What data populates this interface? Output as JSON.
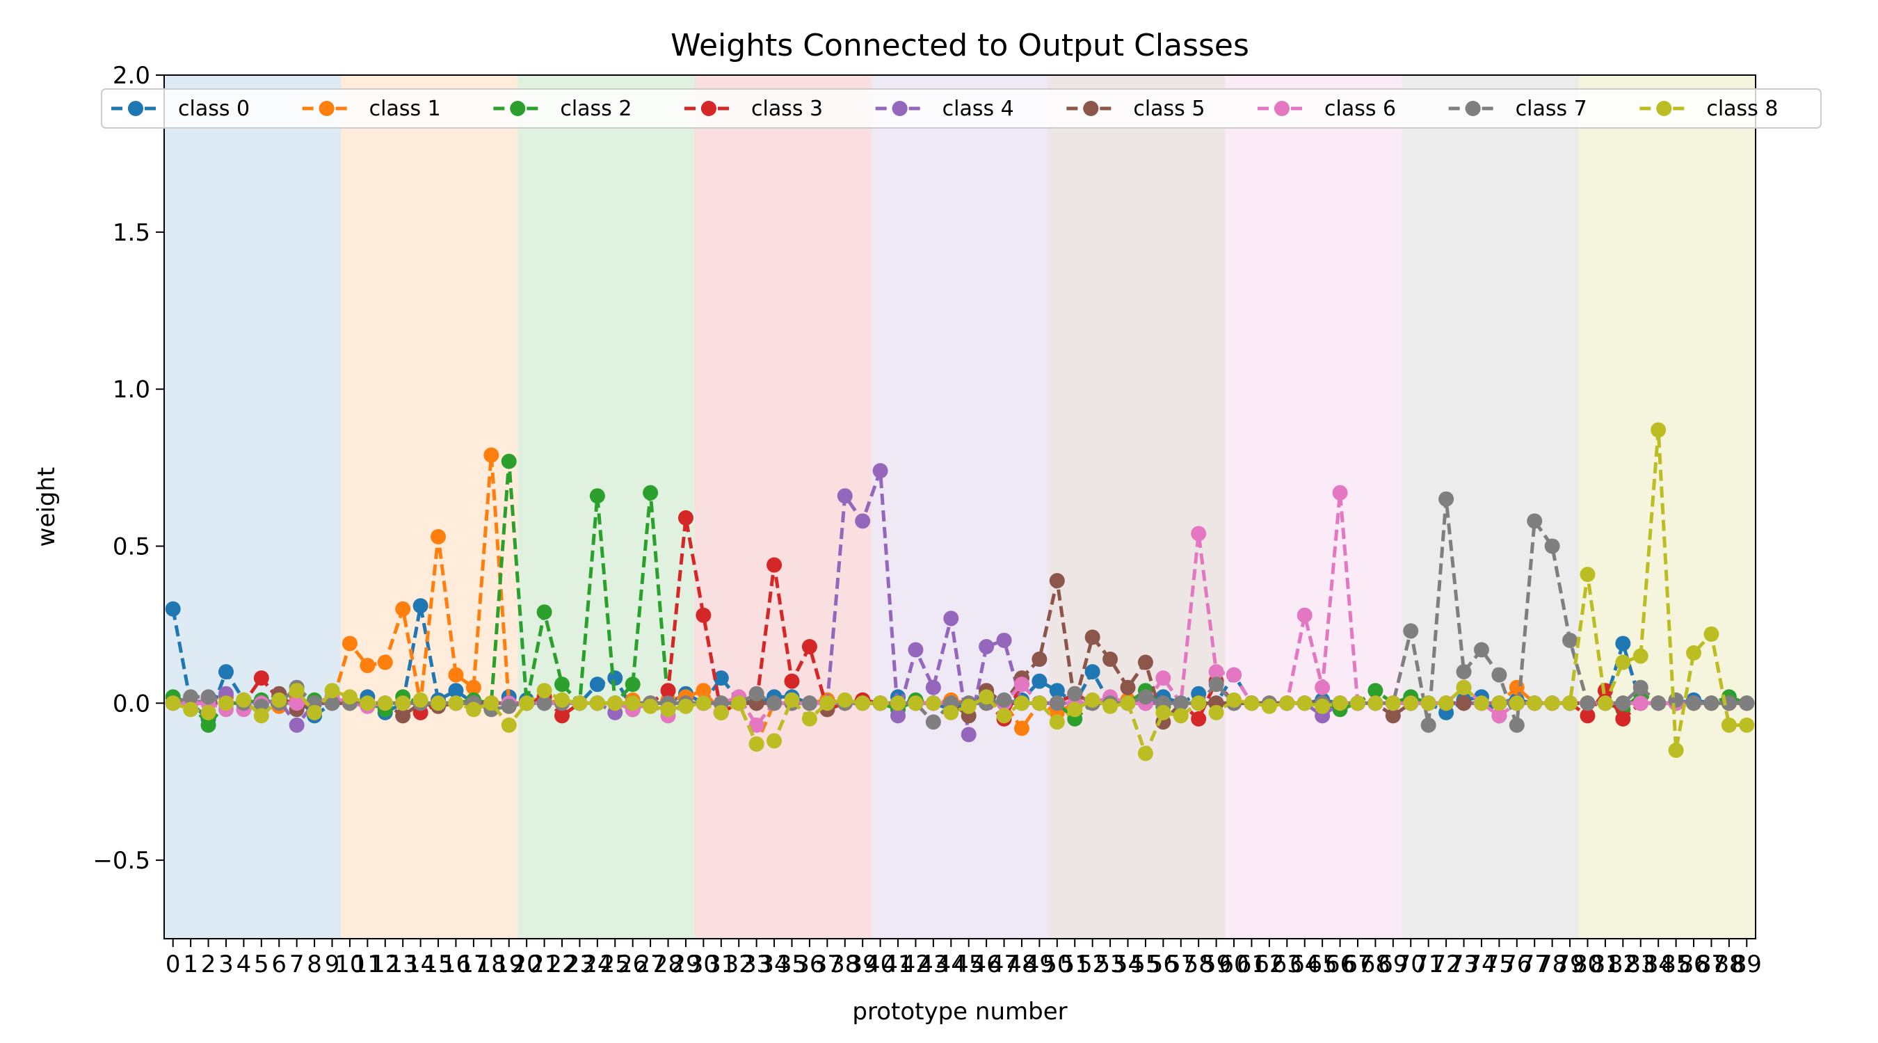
{
  "chart_data": {
    "type": "line",
    "title": "Weights Connected to Output Classes",
    "xlabel": "prototype number",
    "ylabel": "weight",
    "xlim": [
      -0.5,
      89.5
    ],
    "ylim": [
      -0.75,
      2.0
    ],
    "yticks": [
      -0.5,
      0.0,
      0.5,
      1.0,
      1.5,
      2.0
    ],
    "ytick_labels": [
      "−0.5",
      "0.0",
      "0.5",
      "1.0",
      "1.5",
      "2.0"
    ],
    "xtick_step": 1,
    "line_style": "dashed",
    "marker": "circle",
    "legend_position": "top",
    "band_size": 10,
    "band_opacity": 0.15,
    "series": [
      {
        "name": "class 0",
        "color": "#1f77b4",
        "values": [
          0.3,
          0.0,
          -0.05,
          0.1,
          0.01,
          0.0,
          0.01,
          0.02,
          -0.04,
          0.0,
          0.01,
          0.02,
          -0.03,
          0.0,
          0.31,
          0.01,
          0.04,
          0.0,
          0.0,
          0.02,
          0.01,
          0.0,
          0.0,
          0.0,
          0.06,
          0.08,
          -0.02,
          0.0,
          0.0,
          0.03,
          0.0,
          0.08,
          0.01,
          0.0,
          0.02,
          0.02,
          0.0,
          0.01,
          0.0,
          0.01,
          0.0,
          0.02,
          0.0,
          0.0,
          -0.02,
          0.0,
          0.03,
          0.0,
          0.01,
          0.07,
          0.04,
          0.0,
          0.1,
          0.0,
          0.01,
          0.0,
          0.02,
          0.0,
          0.03,
          0.0,
          0.09,
          0.0,
          0.0,
          0.0,
          0.0,
          0.01,
          0.0,
          0.0,
          0.0,
          0.0,
          0.0,
          0.0,
          -0.03,
          0.01,
          0.02,
          -0.04,
          0.01,
          0.0,
          0.0,
          0.0,
          0.0,
          0.0,
          0.19,
          0.0,
          0.0,
          0.0,
          0.01,
          0.0,
          0.0,
          0.0
        ]
      },
      {
        "name": "class 1",
        "color": "#ff7f0e",
        "values": [
          0.0,
          0.0,
          0.01,
          0.02,
          0.01,
          0.0,
          -0.01,
          0.01,
          0.0,
          0.0,
          0.19,
          0.12,
          0.13,
          0.3,
          0.0,
          0.53,
          0.09,
          0.05,
          0.79,
          0.0,
          0.0,
          0.0,
          0.01,
          0.0,
          0.0,
          0.0,
          0.01,
          0.0,
          0.01,
          0.02,
          0.04,
          -0.03,
          0.0,
          -0.13,
          0.0,
          0.0,
          0.0,
          0.01,
          0.0,
          0.0,
          0.0,
          0.0,
          0.0,
          0.0,
          0.01,
          0.0,
          0.0,
          0.0,
          -0.08,
          0.0,
          -0.03,
          0.0,
          0.0,
          0.0,
          0.01,
          0.0,
          0.0,
          0.0,
          0.0,
          0.0,
          0.0,
          0.0,
          0.0,
          0.0,
          0.0,
          0.0,
          0.0,
          0.0,
          0.0,
          0.0,
          0.0,
          0.0,
          0.0,
          0.0,
          0.0,
          0.0,
          0.05,
          0.0,
          0.0,
          0.0,
          0.0,
          0.0,
          0.0,
          0.0,
          0.0,
          0.0,
          0.0,
          0.0,
          0.0,
          0.0
        ]
      },
      {
        "name": "class 2",
        "color": "#2ca02c",
        "values": [
          0.02,
          0.0,
          -0.07,
          0.0,
          0.0,
          0.01,
          0.0,
          0.0,
          0.01,
          0.0,
          0.0,
          0.0,
          -0.02,
          0.02,
          0.0,
          0.0,
          0.0,
          0.01,
          0.0,
          0.77,
          0.0,
          0.29,
          0.06,
          0.0,
          0.66,
          0.0,
          0.06,
          0.67,
          0.0,
          0.0,
          0.0,
          0.0,
          0.0,
          0.0,
          0.0,
          0.0,
          0.0,
          0.0,
          0.0,
          0.0,
          0.0,
          -0.02,
          0.01,
          0.0,
          0.0,
          0.0,
          0.0,
          0.0,
          0.0,
          0.0,
          0.0,
          -0.05,
          0.0,
          0.0,
          0.0,
          0.04,
          -0.01,
          0.0,
          0.0,
          0.0,
          0.0,
          0.0,
          0.0,
          0.0,
          0.0,
          0.0,
          -0.02,
          0.0,
          0.04,
          0.0,
          0.02,
          0.0,
          0.0,
          0.0,
          0.0,
          0.0,
          0.0,
          0.0,
          0.0,
          0.0,
          0.0,
          0.0,
          -0.02,
          0.03,
          0.0,
          0.0,
          0.0,
          0.0,
          0.02,
          0.0
        ]
      },
      {
        "name": "class 3",
        "color": "#d62728",
        "values": [
          0.0,
          0.0,
          0.0,
          0.0,
          0.0,
          0.08,
          0.01,
          0.0,
          0.0,
          0.0,
          0.0,
          0.0,
          0.0,
          0.0,
          -0.03,
          0.0,
          0.0,
          0.0,
          0.0,
          0.0,
          0.0,
          0.02,
          -0.04,
          0.0,
          0.0,
          0.0,
          0.0,
          0.0,
          0.04,
          0.59,
          0.28,
          -0.03,
          0.0,
          0.0,
          0.44,
          0.07,
          0.18,
          -0.02,
          0.0,
          0.01,
          0.0,
          0.0,
          0.0,
          0.0,
          0.0,
          0.0,
          0.0,
          -0.05,
          0.06,
          0.0,
          0.0,
          0.03,
          0.0,
          0.0,
          0.0,
          0.0,
          0.0,
          0.0,
          -0.05,
          0.07,
          0.0,
          0.0,
          0.0,
          0.0,
          0.0,
          0.0,
          0.0,
          0.0,
          0.0,
          0.0,
          0.0,
          0.0,
          0.0,
          0.0,
          0.0,
          0.0,
          0.0,
          0.0,
          0.0,
          0.0,
          -0.04,
          0.04,
          -0.05,
          0.0,
          0.0,
          0.0,
          0.0,
          0.0,
          0.0,
          0.0
        ]
      },
      {
        "name": "class 4",
        "color": "#9467bd",
        "values": [
          0.0,
          0.0,
          0.01,
          0.03,
          0.0,
          0.0,
          0.01,
          -0.07,
          0.0,
          0.0,
          0.0,
          0.0,
          0.0,
          0.0,
          0.0,
          0.0,
          0.0,
          0.0,
          0.0,
          0.0,
          0.0,
          0.0,
          0.0,
          0.0,
          0.0,
          -0.03,
          0.0,
          0.0,
          0.0,
          0.0,
          0.0,
          0.0,
          0.0,
          0.0,
          0.0,
          0.0,
          0.0,
          0.0,
          0.66,
          0.58,
          0.74,
          -0.04,
          0.17,
          0.05,
          0.27,
          -0.1,
          0.18,
          0.2,
          0.0,
          0.0,
          0.0,
          0.0,
          0.0,
          0.0,
          0.0,
          0.0,
          0.0,
          0.0,
          0.0,
          0.0,
          0.0,
          0.0,
          0.0,
          0.0,
          0.0,
          -0.04,
          0.0,
          0.0,
          0.0,
          0.0,
          0.0,
          0.0,
          0.0,
          0.0,
          0.0,
          0.0,
          0.0,
          0.0,
          0.0,
          0.0,
          0.0,
          0.0,
          0.0,
          0.0,
          0.0,
          0.0,
          0.0,
          0.0,
          0.0,
          0.0
        ]
      },
      {
        "name": "class 5",
        "color": "#8c564b",
        "values": [
          0.0,
          0.0,
          0.0,
          0.0,
          0.0,
          0.0,
          0.03,
          -0.02,
          0.0,
          0.0,
          0.0,
          0.0,
          0.0,
          -0.04,
          0.0,
          -0.01,
          0.0,
          0.0,
          0.0,
          0.0,
          0.0,
          0.0,
          0.0,
          0.0,
          0.0,
          0.0,
          0.0,
          0.0,
          0.0,
          0.0,
          0.0,
          0.0,
          0.0,
          0.0,
          0.0,
          0.0,
          0.0,
          -0.02,
          0.0,
          0.0,
          0.0,
          0.0,
          0.0,
          0.0,
          0.0,
          -0.04,
          0.04,
          0.0,
          0.08,
          0.14,
          0.39,
          0.0,
          0.21,
          0.14,
          0.05,
          0.13,
          -0.06,
          0.0,
          0.0,
          0.0,
          0.0,
          0.0,
          0.0,
          0.0,
          0.0,
          0.0,
          0.0,
          0.0,
          0.0,
          -0.04,
          0.0,
          0.0,
          0.0,
          0.0,
          0.0,
          0.0,
          0.0,
          0.0,
          0.0,
          0.0,
          0.0,
          0.0,
          0.0,
          0.0,
          0.0,
          0.0,
          0.0,
          0.0,
          0.0,
          0.0
        ]
      },
      {
        "name": "class 6",
        "color": "#e377c2",
        "values": [
          0.0,
          0.0,
          0.0,
          -0.02,
          -0.02,
          0.0,
          0.0,
          0.0,
          0.0,
          0.02,
          0.0,
          -0.01,
          0.0,
          0.0,
          0.0,
          0.0,
          0.0,
          0.0,
          0.0,
          0.0,
          0.0,
          0.0,
          0.0,
          0.0,
          0.0,
          0.0,
          -0.02,
          0.0,
          -0.04,
          0.0,
          0.0,
          0.0,
          0.02,
          -0.07,
          0.0,
          0.0,
          0.0,
          0.0,
          0.0,
          0.0,
          0.0,
          0.0,
          0.0,
          0.0,
          0.0,
          0.0,
          0.0,
          0.0,
          0.06,
          0.0,
          0.0,
          0.0,
          0.0,
          0.02,
          0.0,
          0.0,
          0.08,
          0.0,
          0.54,
          0.1,
          0.09,
          0.0,
          0.0,
          0.0,
          0.28,
          0.05,
          0.67,
          0.0,
          0.0,
          0.0,
          0.0,
          0.0,
          0.0,
          0.05,
          0.0,
          -0.04,
          0.0,
          0.0,
          0.0,
          0.0,
          0.0,
          0.0,
          0.0,
          0.0,
          0.0,
          0.0,
          0.0,
          0.0,
          0.0,
          0.0
        ]
      },
      {
        "name": "class 7",
        "color": "#7f7f7f",
        "values": [
          0.0,
          0.02,
          0.02,
          0.0,
          0.0,
          -0.01,
          0.0,
          0.05,
          0.0,
          0.0,
          0.0,
          0.0,
          0.0,
          0.0,
          0.0,
          0.0,
          0.0,
          0.0,
          -0.02,
          -0.01,
          0.0,
          0.0,
          0.0,
          0.0,
          0.0,
          0.0,
          0.0,
          0.0,
          0.0,
          0.0,
          0.0,
          0.0,
          0.0,
          0.03,
          0.0,
          0.0,
          0.0,
          0.0,
          0.0,
          0.0,
          0.0,
          0.0,
          0.0,
          -0.06,
          0.0,
          0.0,
          0.0,
          0.01,
          0.0,
          0.0,
          0.0,
          0.03,
          0.0,
          0.0,
          0.0,
          0.02,
          0.0,
          0.0,
          0.0,
          0.06,
          0.0,
          0.0,
          0.0,
          0.0,
          0.0,
          0.0,
          0.0,
          0.0,
          0.0,
          0.0,
          0.23,
          -0.07,
          0.65,
          0.1,
          0.17,
          0.09,
          -0.07,
          0.58,
          0.5,
          0.2,
          0.0,
          0.0,
          0.0,
          0.05,
          0.0,
          0.01,
          0.0,
          0.0,
          0.0,
          0.0
        ]
      },
      {
        "name": "class 8",
        "color": "#bcbd22",
        "values": [
          0.0,
          -0.02,
          -0.03,
          0.0,
          0.01,
          -0.04,
          0.01,
          0.04,
          -0.03,
          0.04,
          0.02,
          0.0,
          0.0,
          0.0,
          0.01,
          0.0,
          0.0,
          -0.02,
          0.0,
          -0.07,
          0.0,
          0.04,
          0.01,
          0.0,
          0.0,
          0.0,
          0.0,
          -0.01,
          -0.02,
          -0.01,
          0.0,
          -0.03,
          0.0,
          -0.13,
          -0.12,
          0.01,
          -0.05,
          0.0,
          0.01,
          0.0,
          0.0,
          0.0,
          0.0,
          0.0,
          -0.03,
          -0.01,
          0.02,
          -0.04,
          0.0,
          0.0,
          -0.06,
          -0.02,
          0.01,
          -0.01,
          0.0,
          -0.16,
          -0.03,
          -0.04,
          0.0,
          -0.03,
          0.01,
          0.0,
          -0.01,
          0.0,
          0.0,
          -0.01,
          0.0,
          0.0,
          0.0,
          0.0,
          0.0,
          0.0,
          0.0,
          0.05,
          0.0,
          0.0,
          0.0,
          0.0,
          0.0,
          0.0,
          0.41,
          0.0,
          0.13,
          0.15,
          0.87,
          -0.15,
          0.16,
          0.22,
          -0.07,
          -0.07
        ]
      }
    ]
  }
}
